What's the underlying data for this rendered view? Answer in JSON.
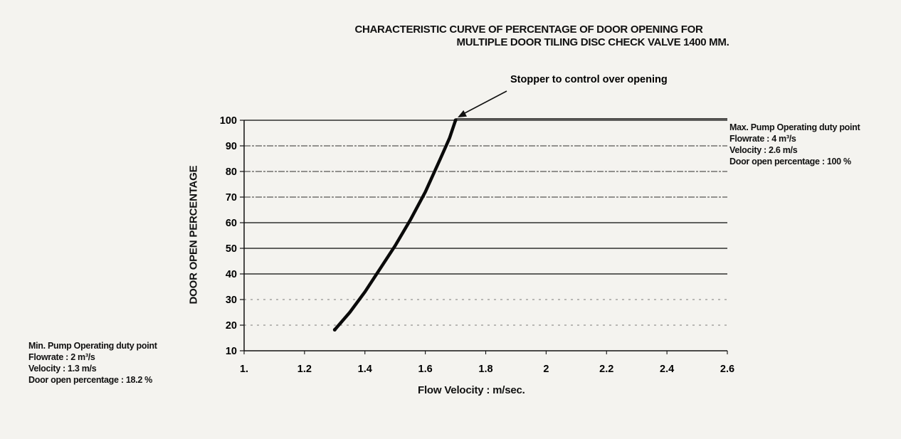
{
  "chart_data": {
    "type": "line",
    "title": "CHARACTERISTIC CURVE OF PERCENTAGE OF DOOR OPENING FOR",
    "subtitle": "MULTIPLE DOOR TILING DISC CHECK VALVE 1400 MM.",
    "xlabel": "Flow Velocity : m/sec.",
    "ylabel": "DOOR OPEN PERCENTAGE",
    "xlim": [
      1,
      2.6
    ],
    "ylim": [
      10,
      100
    ],
    "x_ticks": [
      "1.",
      "1.2",
      "1.4",
      "1.6",
      "1.8",
      "2",
      "2.2",
      "2.4",
      "2.6"
    ],
    "y_ticks": [
      "100",
      "90",
      "80",
      "70",
      "60",
      "50",
      "40",
      "30",
      "20",
      "10"
    ],
    "grid": "horizontal",
    "series": [
      {
        "x": [
          1.3,
          1.35,
          1.4,
          1.45,
          1.5,
          1.55,
          1.6,
          1.65,
          1.68,
          1.7,
          1.72,
          1.8,
          1.9,
          2.0,
          2.2,
          2.4,
          2.6
        ],
        "y": [
          18.2,
          25,
          33,
          42,
          51,
          61,
          72,
          85,
          93,
          100,
          100,
          100,
          100,
          100,
          100,
          100,
          100
        ]
      }
    ],
    "annotations": {
      "stopper": "Stopper to control over opening",
      "max_point": {
        "line1": "Max. Pump Operating duty point",
        "line2": "Flowrate : 4 m³/s",
        "line3": "Velocity : 2.6 m/s",
        "line4": "Door open percentage : 100 %"
      },
      "min_point": {
        "line1": "Min. Pump Operating duty point",
        "line2": "Flowrate : 2 m³/s",
        "line3": "Velocity : 1.3 m/s",
        "line4": "Door open percentage : 18.2 %"
      }
    }
  }
}
